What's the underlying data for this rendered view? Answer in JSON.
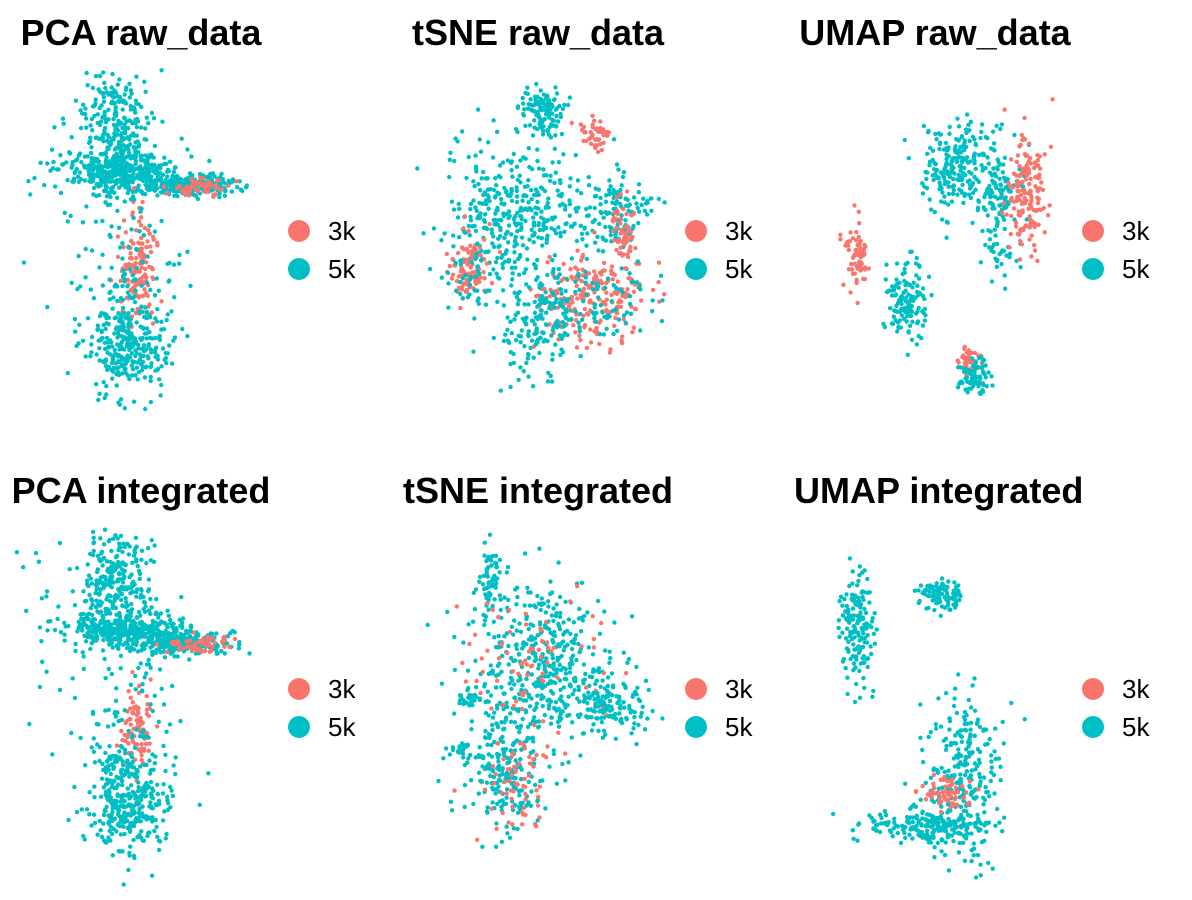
{
  "colors": {
    "3k": "#F8766D",
    "5k": "#00BFC4"
  },
  "panels": [
    {
      "title": "PCA raw_data",
      "legend": [
        "3k",
        "5k"
      ]
    },
    {
      "title": "tSNE raw_data",
      "legend": [
        "3k",
        "5k"
      ]
    },
    {
      "title": "UMAP raw_data",
      "legend": [
        "3k",
        "5k"
      ]
    },
    {
      "title": "PCA integrated",
      "legend": [
        "3k",
        "5k"
      ]
    },
    {
      "title": "tSNE integrated",
      "legend": [
        "3k",
        "5k"
      ]
    },
    {
      "title": "UMAP integrated",
      "legend": [
        "3k",
        "5k"
      ]
    }
  ],
  "chart_data": [
    {
      "type": "scatter",
      "title": "PCA raw_data",
      "xlabel": "",
      "ylabel": "",
      "series": [
        {
          "name": "3k"
        },
        {
          "name": "5k"
        }
      ]
    },
    {
      "type": "scatter",
      "title": "tSNE raw_data",
      "xlabel": "",
      "ylabel": "",
      "series": [
        {
          "name": "3k"
        },
        {
          "name": "5k"
        }
      ]
    },
    {
      "type": "scatter",
      "title": "UMAP raw_data",
      "xlabel": "",
      "ylabel": "",
      "series": [
        {
          "name": "3k"
        },
        {
          "name": "5k"
        }
      ]
    },
    {
      "type": "scatter",
      "title": "PCA integrated",
      "xlabel": "",
      "ylabel": "",
      "series": [
        {
          "name": "3k"
        },
        {
          "name": "5k"
        }
      ]
    },
    {
      "type": "scatter",
      "title": "tSNE integrated",
      "xlabel": "",
      "ylabel": "",
      "series": [
        {
          "name": "3k"
        },
        {
          "name": "5k"
        }
      ]
    },
    {
      "type": "scatter",
      "title": "UMAP integrated",
      "xlabel": "",
      "ylabel": "",
      "series": [
        {
          "name": "3k"
        },
        {
          "name": "5k"
        }
      ]
    }
  ]
}
